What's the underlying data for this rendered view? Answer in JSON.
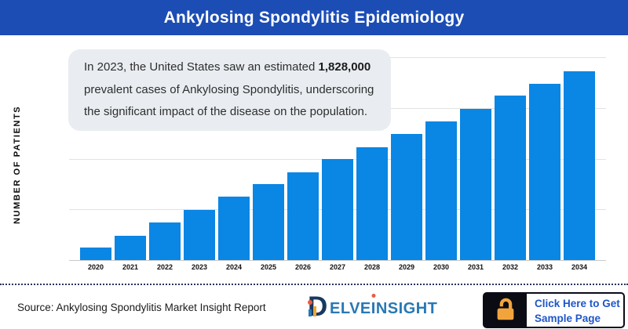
{
  "header": {
    "title": "Ankylosing Spondylitis Epidemiology"
  },
  "callout": {
    "text_before": "In 2023, the United States saw an estimated ",
    "highlight": "1,828,000",
    "text_after": " prevalent cases of Ankylosing Spondylitis, underscoring the significant impact of the disease on the population."
  },
  "chart_data": {
    "type": "bar",
    "title": "Ankylosing Spondylitis Epidemiology",
    "xlabel": "",
    "ylabel": "NUMBER OF PATIENTS",
    "categories": [
      "2020",
      "2021",
      "2022",
      "2023",
      "2024",
      "2025",
      "2026",
      "2027",
      "2028",
      "2029",
      "2030",
      "2031",
      "2032",
      "2033",
      "2034"
    ],
    "values": [
      457000,
      885000,
      1371000,
      1828000,
      2314000,
      2771000,
      3199000,
      3685000,
      4113000,
      4599000,
      5056000,
      5513000,
      5998000,
      6427000,
      6884000
    ],
    "ylim": [
      0,
      7400000
    ],
    "gridlines": "4 horizontal gridlines, no y tick labels",
    "legend": "none",
    "bar_color": "#0A86E4",
    "values_note": "Y axis has no numeric labels; values estimated from bar heights anchored to the stated 1,828,000 prevalent cases in 2023 (bar top exactly on first gridline)."
  },
  "footer": {
    "source": "Source: Ankylosing Spondylitis Market Insight Report",
    "logo": {
      "d_letter": "D",
      "part1": "ELVE",
      "i_letter": "I",
      "part2": "NSIGHT"
    },
    "button": {
      "line1": "Click Here to Get",
      "line2": "Sample Page"
    }
  },
  "colors": {
    "header_bg": "#1C4DB5",
    "bar_fill": "#0A86E4",
    "callout_bg": "#E9EDF1",
    "button_text": "#1E56C8",
    "lock_orange": "#F2A43C",
    "logo_navy": "#173A5E",
    "logo_blue": "#2878B5",
    "gridline": "#E2E2E2"
  }
}
